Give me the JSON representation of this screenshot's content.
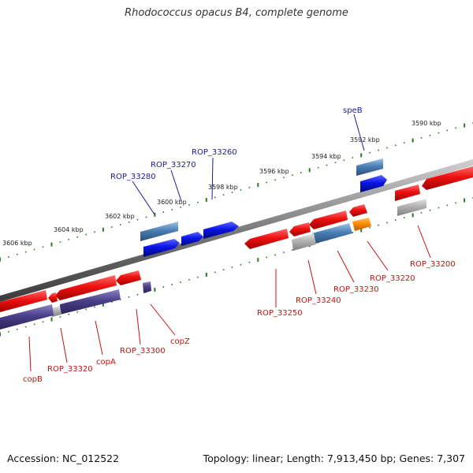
{
  "title": "Rhodococcus opacus B4, complete genome",
  "footer": {
    "accession": "Accession: NC_012522",
    "summary": "Topology: linear; Length: 7,913,450 bp; Genes: 7,307"
  },
  "colors": {
    "forward_gene": "#e8101c",
    "forward_cds": "#0a14e6",
    "forward_misc": "#4a7fb5",
    "reverse_gene": "#e01018",
    "reverse_misc": "#4a3f8a",
    "gray": "#b0b0b0",
    "orange": "#ff8c00",
    "forward_label": "#1a1aa0",
    "reverse_label": "#cc1010",
    "tick": "#2a7a2a",
    "backbone": "#7a7a7a"
  },
  "scale": {
    "labels": [
      "3590 kbp",
      "3592 kbp",
      "3594 kbp",
      "3596 kbp",
      "3598 kbp",
      "3600 kbp",
      "3602 kbp",
      "3604 kbp",
      "3606 kbp"
    ]
  },
  "forward_genes": [
    "speB",
    "ROP_33260",
    "ROP_33270",
    "ROP_33280"
  ],
  "reverse_genes": [
    "ROP_33200",
    "ROP_33220",
    "ROP_33230",
    "ROP_33240",
    "ROP_33250",
    "copZ",
    "ROP_33300",
    "copA",
    "ROP_33320",
    "copB"
  ]
}
